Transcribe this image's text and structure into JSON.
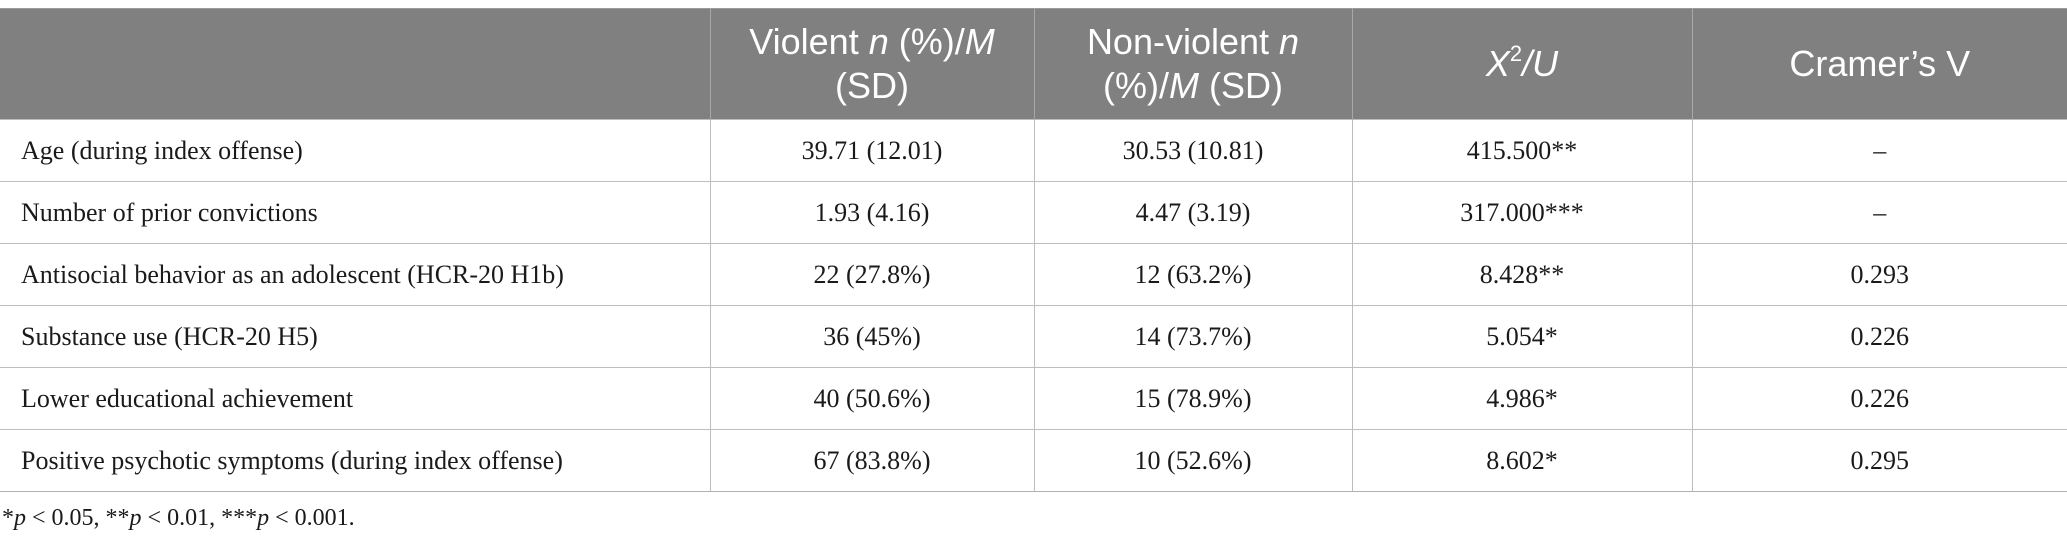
{
  "table": {
    "header": {
      "col0": "",
      "col1_a": "Violent ",
      "col1_n": "n",
      "col1_b": " (%)/",
      "col1_m": "M",
      "col1_c": " (SD)",
      "col2_a": "Non-violent ",
      "col2_n": "n",
      "col2_b": " (%)/",
      "col2_m": "M",
      "col2_c": " (SD)",
      "col3_x": "X",
      "col3_sup": "2",
      "col3_rest": "/U",
      "col4": "Cramer’s V"
    },
    "rows": [
      {
        "label": "Age (during index offense)",
        "violent": "39.71 (12.01)",
        "nonviolent": "30.53 (10.81)",
        "stat": "415.500**",
        "cramer": "–"
      },
      {
        "label": "Number of prior convictions",
        "violent": "1.93 (4.16)",
        "nonviolent": "4.47 (3.19)",
        "stat": "317.000***",
        "cramer": "–"
      },
      {
        "label": "Antisocial behavior as an adolescent (HCR-20 H1b)",
        "violent": "22 (27.8%)",
        "nonviolent": "12 (63.2%)",
        "stat": "8.428**",
        "cramer": "0.293"
      },
      {
        "label": "Substance use (HCR-20 H5)",
        "violent": "36 (45%)",
        "nonviolent": "14 (73.7%)",
        "stat": "5.054*",
        "cramer": "0.226"
      },
      {
        "label": "Lower educational achievement",
        "violent": "40 (50.6%)",
        "nonviolent": "15 (78.9%)",
        "stat": "4.986*",
        "cramer": "0.226"
      },
      {
        "label": "Positive psychotic symptoms (during index offense)",
        "violent": "67 (83.8%)",
        "nonviolent": "10 (52.6%)",
        "stat": "8.602*",
        "cramer": "0.295"
      }
    ]
  },
  "footnote": {
    "s1": "*",
    "p1": "p",
    "s2": " < 0.05, **",
    "p2": "p",
    "s3": " < 0.01, ***",
    "p3": "p",
    "s4": " < 0.001."
  }
}
